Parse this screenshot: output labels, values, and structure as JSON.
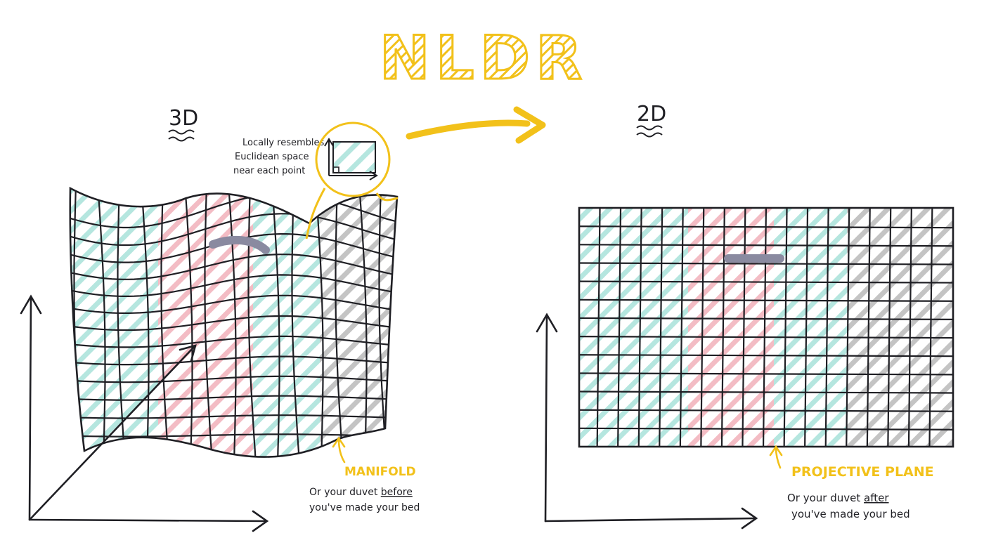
{
  "title": "NLDR",
  "left": {
    "dim_label": "3D",
    "callout": [
      "Locally resembles",
      "Euclidean space",
      "near each point"
    ],
    "manifold_label": "MANIFOLD",
    "note_prefix": "Or your duvet ",
    "note_emphasis": "before",
    "note_line2": "you've made your bed"
  },
  "right": {
    "dim_label": "2D",
    "plane_label": "PROJECTIVE PLANE",
    "note_prefix": "Or your duvet ",
    "note_emphasis": "after",
    "note_line2": "you've made your bed"
  },
  "colors": {
    "ink": "#1f1f24",
    "accent_yellow": "#f2c11a",
    "teal": "#b5e6df",
    "pink": "#f3bcc4",
    "gray": "#bdbdbd",
    "segment": "#8a8aa0"
  }
}
